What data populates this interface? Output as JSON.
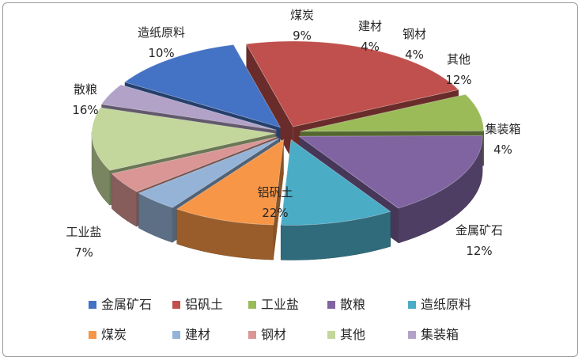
{
  "chart_data": {
    "type": "pie",
    "title": "",
    "legend_position": "bottom",
    "slices": [
      {
        "name": "金属矿石",
        "value": 12,
        "label": "12%",
        "color": "#4472C4"
      },
      {
        "name": "铝矾土",
        "value": 22,
        "label": "22%",
        "color": "#C0504D"
      },
      {
        "name": "工业盐",
        "value": 7,
        "label": "7%",
        "color": "#9BBB59"
      },
      {
        "name": "散粮",
        "value": 16,
        "label": "16%",
        "color": "#8064A2"
      },
      {
        "name": "造纸原料",
        "value": 10,
        "label": "10%",
        "color": "#4BACC6"
      },
      {
        "name": "煤炭",
        "value": 9,
        "label": "9%",
        "color": "#F79646"
      },
      {
        "name": "建材",
        "value": 4,
        "label": "4%",
        "color": "#95B3D7"
      },
      {
        "name": "钢材",
        "value": 4,
        "label": "4%",
        "color": "#D99694"
      },
      {
        "name": "其他",
        "value": 12,
        "label": "12%",
        "color": "#C3D69B"
      },
      {
        "name": "集装箱",
        "value": 4,
        "label": "4%",
        "color": "#B2A2C7"
      }
    ]
  }
}
